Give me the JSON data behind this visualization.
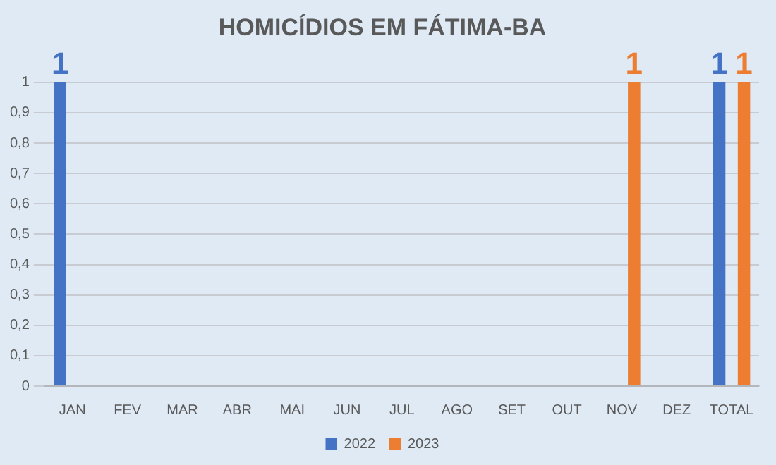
{
  "chart_data": {
    "type": "bar",
    "title": "HOMICÍDIOS EM FÁTIMA-BA",
    "categories": [
      "JAN",
      "FEV",
      "MAR",
      "ABR",
      "MAI",
      "JUN",
      "JUL",
      "AGO",
      "SET",
      "OUT",
      "NOV",
      "DEZ",
      "TOTAL"
    ],
    "series": [
      {
        "name": "2022",
        "color": "#4472c4",
        "values": [
          1,
          0,
          0,
          0,
          0,
          0,
          0,
          0,
          0,
          0,
          0,
          0,
          1
        ],
        "value_labels": [
          "1",
          null,
          null,
          null,
          null,
          null,
          null,
          null,
          null,
          null,
          null,
          null,
          "1"
        ]
      },
      {
        "name": "2023",
        "color": "#ed7d31",
        "values": [
          0,
          0,
          0,
          0,
          0,
          0,
          0,
          0,
          0,
          0,
          1,
          0,
          1
        ],
        "value_labels": [
          null,
          null,
          null,
          null,
          null,
          null,
          null,
          null,
          null,
          null,
          "1",
          null,
          "1"
        ]
      }
    ],
    "ylim": [
      0,
      1
    ],
    "yticks": [
      0,
      {
        "value": 0.1,
        "label": "0,1"
      },
      {
        "value": 0.2,
        "label": "0,2"
      },
      {
        "value": 0.3,
        "label": "0,3"
      },
      {
        "value": 0.4,
        "label": "0,4"
      },
      {
        "value": 0.5,
        "label": "0,5"
      },
      {
        "value": 0.6,
        "label": "0,6"
      },
      {
        "value": 0.7,
        "label": "0,7"
      },
      {
        "value": 0.8,
        "label": "0,8"
      },
      {
        "value": 0.9,
        "label": "0,9"
      },
      1
    ],
    "grid": "y",
    "legend": "bottom"
  }
}
